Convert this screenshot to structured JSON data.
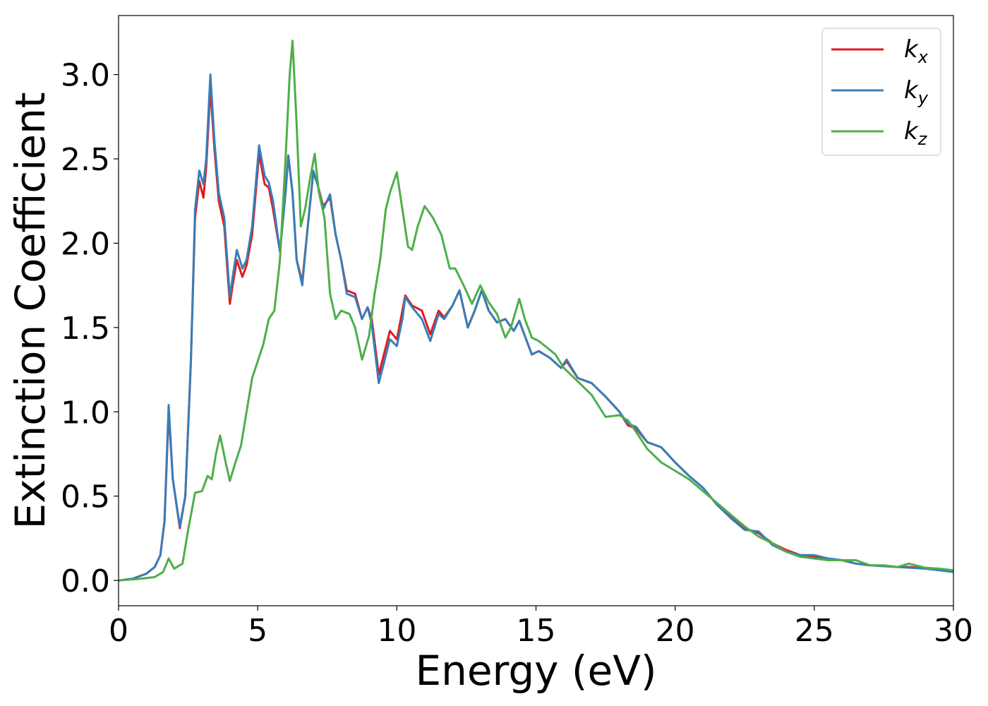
{
  "chart_data": {
    "type": "line",
    "title": "",
    "xlabel": "Energy (eV)",
    "ylabel": "Extinction Coefficient",
    "xlim": [
      0,
      30
    ],
    "ylim": [
      -0.15,
      3.35
    ],
    "xticks": [
      0,
      5,
      10,
      15,
      20,
      25,
      30
    ],
    "xtick_labels": [
      "0",
      "5",
      "10",
      "15",
      "20",
      "25",
      "30"
    ],
    "yticks": [
      0.0,
      0.5,
      1.0,
      1.5,
      2.0,
      2.5,
      3.0
    ],
    "ytick_labels": [
      "0.0",
      "0.5",
      "1.0",
      "1.5",
      "2.0",
      "2.5",
      "3.0"
    ],
    "grid": false,
    "legend_position": "top-right",
    "series": [
      {
        "name": "k",
        "subscript": "x",
        "color": "#e41a1c",
        "points": [
          [
            0,
            0.0
          ],
          [
            0.5,
            0.01
          ],
          [
            1.0,
            0.04
          ],
          [
            1.3,
            0.08
          ],
          [
            1.5,
            0.15
          ],
          [
            1.65,
            0.35
          ],
          [
            1.8,
            1.0
          ],
          [
            1.95,
            0.6
          ],
          [
            2.2,
            0.31
          ],
          [
            2.4,
            0.5
          ],
          [
            2.6,
            1.3
          ],
          [
            2.75,
            2.15
          ],
          [
            2.9,
            2.37
          ],
          [
            3.05,
            2.27
          ],
          [
            3.15,
            2.45
          ],
          [
            3.3,
            2.92
          ],
          [
            3.45,
            2.55
          ],
          [
            3.6,
            2.25
          ],
          [
            3.8,
            2.1
          ],
          [
            4.0,
            1.64
          ],
          [
            4.1,
            1.75
          ],
          [
            4.25,
            1.9
          ],
          [
            4.45,
            1.8
          ],
          [
            4.6,
            1.87
          ],
          [
            4.8,
            2.05
          ],
          [
            5.05,
            2.53
          ],
          [
            5.25,
            2.35
          ],
          [
            5.4,
            2.33
          ],
          [
            5.55,
            2.2
          ],
          [
            5.8,
            1.95
          ],
          [
            6.0,
            2.3
          ],
          [
            6.1,
            2.52
          ],
          [
            6.25,
            2.3
          ],
          [
            6.4,
            1.9
          ],
          [
            6.6,
            1.77
          ],
          [
            6.8,
            2.1
          ],
          [
            7.0,
            2.42
          ],
          [
            7.15,
            2.35
          ],
          [
            7.35,
            2.22
          ],
          [
            7.6,
            2.27
          ],
          [
            7.8,
            2.05
          ],
          [
            8.0,
            1.9
          ],
          [
            8.2,
            1.72
          ],
          [
            8.5,
            1.7
          ],
          [
            8.75,
            1.55
          ],
          [
            8.95,
            1.62
          ],
          [
            9.1,
            1.55
          ],
          [
            9.35,
            1.22
          ],
          [
            9.55,
            1.35
          ],
          [
            9.75,
            1.48
          ],
          [
            10.0,
            1.43
          ],
          [
            10.2,
            1.6
          ],
          [
            10.3,
            1.69
          ],
          [
            10.55,
            1.63
          ],
          [
            10.9,
            1.6
          ],
          [
            11.2,
            1.46
          ],
          [
            11.5,
            1.6
          ],
          [
            11.7,
            1.56
          ],
          [
            12.0,
            1.63
          ],
          [
            12.25,
            1.72
          ],
          [
            12.55,
            1.5
          ],
          [
            12.8,
            1.6
          ],
          [
            13.05,
            1.72
          ],
          [
            13.3,
            1.6
          ],
          [
            13.6,
            1.53
          ],
          [
            13.9,
            1.55
          ],
          [
            14.2,
            1.48
          ],
          [
            14.4,
            1.54
          ],
          [
            14.6,
            1.45
          ],
          [
            14.85,
            1.34
          ],
          [
            15.1,
            1.36
          ],
          [
            15.5,
            1.32
          ],
          [
            15.9,
            1.26
          ],
          [
            16.1,
            1.3
          ],
          [
            16.5,
            1.2
          ],
          [
            17.0,
            1.17
          ],
          [
            17.5,
            1.09
          ],
          [
            18.0,
            1.0
          ],
          [
            18.3,
            0.92
          ],
          [
            18.6,
            0.9
          ],
          [
            19.0,
            0.82
          ],
          [
            19.5,
            0.79
          ],
          [
            20.0,
            0.7
          ],
          [
            20.5,
            0.62
          ],
          [
            21.0,
            0.55
          ],
          [
            21.5,
            0.45
          ],
          [
            22.0,
            0.38
          ],
          [
            22.5,
            0.31
          ],
          [
            23.0,
            0.28
          ],
          [
            23.5,
            0.22
          ],
          [
            24.0,
            0.18
          ],
          [
            24.5,
            0.15
          ],
          [
            25.0,
            0.14
          ],
          [
            25.5,
            0.13
          ],
          [
            26.0,
            0.12
          ],
          [
            26.5,
            0.1
          ],
          [
            27.0,
            0.09
          ],
          [
            27.5,
            0.085
          ],
          [
            28.0,
            0.08
          ],
          [
            28.5,
            0.08
          ],
          [
            29.0,
            0.07
          ],
          [
            29.5,
            0.065
          ],
          [
            30.0,
            0.05
          ]
        ]
      },
      {
        "name": "k",
        "subscript": "y",
        "color": "#377eb8",
        "points": [
          [
            0,
            0.0
          ],
          [
            0.5,
            0.01
          ],
          [
            1.0,
            0.04
          ],
          [
            1.3,
            0.08
          ],
          [
            1.5,
            0.15
          ],
          [
            1.65,
            0.35
          ],
          [
            1.8,
            1.04
          ],
          [
            1.95,
            0.6
          ],
          [
            2.2,
            0.32
          ],
          [
            2.4,
            0.5
          ],
          [
            2.6,
            1.3
          ],
          [
            2.75,
            2.2
          ],
          [
            2.9,
            2.43
          ],
          [
            3.05,
            2.35
          ],
          [
            3.15,
            2.5
          ],
          [
            3.3,
            3.0
          ],
          [
            3.45,
            2.6
          ],
          [
            3.6,
            2.3
          ],
          [
            3.8,
            2.15
          ],
          [
            4.0,
            1.68
          ],
          [
            4.1,
            1.8
          ],
          [
            4.25,
            1.96
          ],
          [
            4.45,
            1.85
          ],
          [
            4.6,
            1.9
          ],
          [
            4.8,
            2.1
          ],
          [
            5.05,
            2.58
          ],
          [
            5.25,
            2.4
          ],
          [
            5.4,
            2.36
          ],
          [
            5.55,
            2.25
          ],
          [
            5.8,
            1.95
          ],
          [
            6.0,
            2.3
          ],
          [
            6.1,
            2.52
          ],
          [
            6.25,
            2.3
          ],
          [
            6.4,
            1.9
          ],
          [
            6.6,
            1.75
          ],
          [
            6.8,
            2.1
          ],
          [
            7.0,
            2.43
          ],
          [
            7.15,
            2.35
          ],
          [
            7.35,
            2.2
          ],
          [
            7.6,
            2.29
          ],
          [
            7.8,
            2.05
          ],
          [
            8.0,
            1.9
          ],
          [
            8.2,
            1.7
          ],
          [
            8.5,
            1.68
          ],
          [
            8.75,
            1.55
          ],
          [
            8.95,
            1.62
          ],
          [
            9.1,
            1.52
          ],
          [
            9.35,
            1.17
          ],
          [
            9.55,
            1.3
          ],
          [
            9.75,
            1.43
          ],
          [
            10.0,
            1.39
          ],
          [
            10.2,
            1.55
          ],
          [
            10.3,
            1.68
          ],
          [
            10.55,
            1.62
          ],
          [
            10.9,
            1.55
          ],
          [
            11.2,
            1.42
          ],
          [
            11.5,
            1.58
          ],
          [
            11.7,
            1.55
          ],
          [
            12.0,
            1.63
          ],
          [
            12.25,
            1.72
          ],
          [
            12.55,
            1.5
          ],
          [
            12.8,
            1.6
          ],
          [
            13.05,
            1.72
          ],
          [
            13.3,
            1.6
          ],
          [
            13.6,
            1.53
          ],
          [
            13.9,
            1.55
          ],
          [
            14.2,
            1.48
          ],
          [
            14.4,
            1.54
          ],
          [
            14.6,
            1.45
          ],
          [
            14.85,
            1.34
          ],
          [
            15.1,
            1.36
          ],
          [
            15.5,
            1.32
          ],
          [
            15.9,
            1.26
          ],
          [
            16.1,
            1.31
          ],
          [
            16.5,
            1.2
          ],
          [
            17.0,
            1.17
          ],
          [
            17.5,
            1.09
          ],
          [
            18.0,
            1.0
          ],
          [
            18.3,
            0.93
          ],
          [
            18.6,
            0.91
          ],
          [
            19.0,
            0.82
          ],
          [
            19.5,
            0.79
          ],
          [
            20.0,
            0.7
          ],
          [
            20.5,
            0.62
          ],
          [
            21.0,
            0.55
          ],
          [
            21.5,
            0.45
          ],
          [
            22.0,
            0.37
          ],
          [
            22.5,
            0.3
          ],
          [
            23.0,
            0.29
          ],
          [
            23.5,
            0.21
          ],
          [
            24.0,
            0.17
          ],
          [
            24.5,
            0.15
          ],
          [
            25.0,
            0.15
          ],
          [
            25.5,
            0.13
          ],
          [
            26.0,
            0.12
          ],
          [
            26.5,
            0.1
          ],
          [
            27.0,
            0.09
          ],
          [
            27.5,
            0.085
          ],
          [
            28.0,
            0.08
          ],
          [
            28.5,
            0.075
          ],
          [
            29.0,
            0.07
          ],
          [
            29.5,
            0.06
          ],
          [
            30.0,
            0.05
          ]
        ]
      },
      {
        "name": "k",
        "subscript": "z",
        "color": "#4daf4a",
        "points": [
          [
            0,
            0.0
          ],
          [
            0.8,
            0.01
          ],
          [
            1.3,
            0.02
          ],
          [
            1.6,
            0.05
          ],
          [
            1.8,
            0.13
          ],
          [
            2.0,
            0.07
          ],
          [
            2.3,
            0.1
          ],
          [
            2.5,
            0.3
          ],
          [
            2.75,
            0.52
          ],
          [
            3.0,
            0.53
          ],
          [
            3.2,
            0.62
          ],
          [
            3.35,
            0.6
          ],
          [
            3.5,
            0.75
          ],
          [
            3.65,
            0.86
          ],
          [
            3.85,
            0.7
          ],
          [
            4.0,
            0.59
          ],
          [
            4.2,
            0.7
          ],
          [
            4.4,
            0.8
          ],
          [
            4.6,
            1.0
          ],
          [
            4.8,
            1.2
          ],
          [
            5.0,
            1.3
          ],
          [
            5.2,
            1.4
          ],
          [
            5.4,
            1.55
          ],
          [
            5.6,
            1.6
          ],
          [
            5.8,
            1.9
          ],
          [
            6.0,
            2.5
          ],
          [
            6.15,
            3.0
          ],
          [
            6.25,
            3.2
          ],
          [
            6.4,
            2.7
          ],
          [
            6.55,
            2.1
          ],
          [
            6.7,
            2.2
          ],
          [
            6.9,
            2.4
          ],
          [
            7.05,
            2.53
          ],
          [
            7.2,
            2.3
          ],
          [
            7.4,
            2.15
          ],
          [
            7.6,
            1.7
          ],
          [
            7.8,
            1.55
          ],
          [
            8.0,
            1.6
          ],
          [
            8.3,
            1.58
          ],
          [
            8.5,
            1.5
          ],
          [
            8.75,
            1.31
          ],
          [
            9.0,
            1.45
          ],
          [
            9.2,
            1.7
          ],
          [
            9.4,
            1.9
          ],
          [
            9.6,
            2.2
          ],
          [
            9.75,
            2.3
          ],
          [
            10.0,
            2.42
          ],
          [
            10.2,
            2.2
          ],
          [
            10.4,
            1.98
          ],
          [
            10.55,
            1.96
          ],
          [
            10.75,
            2.1
          ],
          [
            11.0,
            2.22
          ],
          [
            11.3,
            2.15
          ],
          [
            11.6,
            2.05
          ],
          [
            11.9,
            1.85
          ],
          [
            12.1,
            1.85
          ],
          [
            12.4,
            1.75
          ],
          [
            12.7,
            1.64
          ],
          [
            13.0,
            1.75
          ],
          [
            13.3,
            1.65
          ],
          [
            13.6,
            1.58
          ],
          [
            13.9,
            1.44
          ],
          [
            14.1,
            1.5
          ],
          [
            14.4,
            1.67
          ],
          [
            14.6,
            1.55
          ],
          [
            14.85,
            1.44
          ],
          [
            15.1,
            1.42
          ],
          [
            15.4,
            1.38
          ],
          [
            15.7,
            1.34
          ],
          [
            16.0,
            1.26
          ],
          [
            16.5,
            1.18
          ],
          [
            17.0,
            1.1
          ],
          [
            17.5,
            0.97
          ],
          [
            18.0,
            0.98
          ],
          [
            18.3,
            0.95
          ],
          [
            18.6,
            0.88
          ],
          [
            19.0,
            0.78
          ],
          [
            19.5,
            0.7
          ],
          [
            20.0,
            0.65
          ],
          [
            20.5,
            0.6
          ],
          [
            21.0,
            0.53
          ],
          [
            21.5,
            0.46
          ],
          [
            22.0,
            0.39
          ],
          [
            22.5,
            0.32
          ],
          [
            23.0,
            0.26
          ],
          [
            23.5,
            0.22
          ],
          [
            24.0,
            0.17
          ],
          [
            24.5,
            0.14
          ],
          [
            25.0,
            0.13
          ],
          [
            25.5,
            0.12
          ],
          [
            26.0,
            0.12
          ],
          [
            26.5,
            0.12
          ],
          [
            27.0,
            0.09
          ],
          [
            27.5,
            0.09
          ],
          [
            28.0,
            0.08
          ],
          [
            28.4,
            0.1
          ],
          [
            29.0,
            0.075
          ],
          [
            29.5,
            0.07
          ],
          [
            30.0,
            0.06
          ]
        ]
      }
    ]
  }
}
